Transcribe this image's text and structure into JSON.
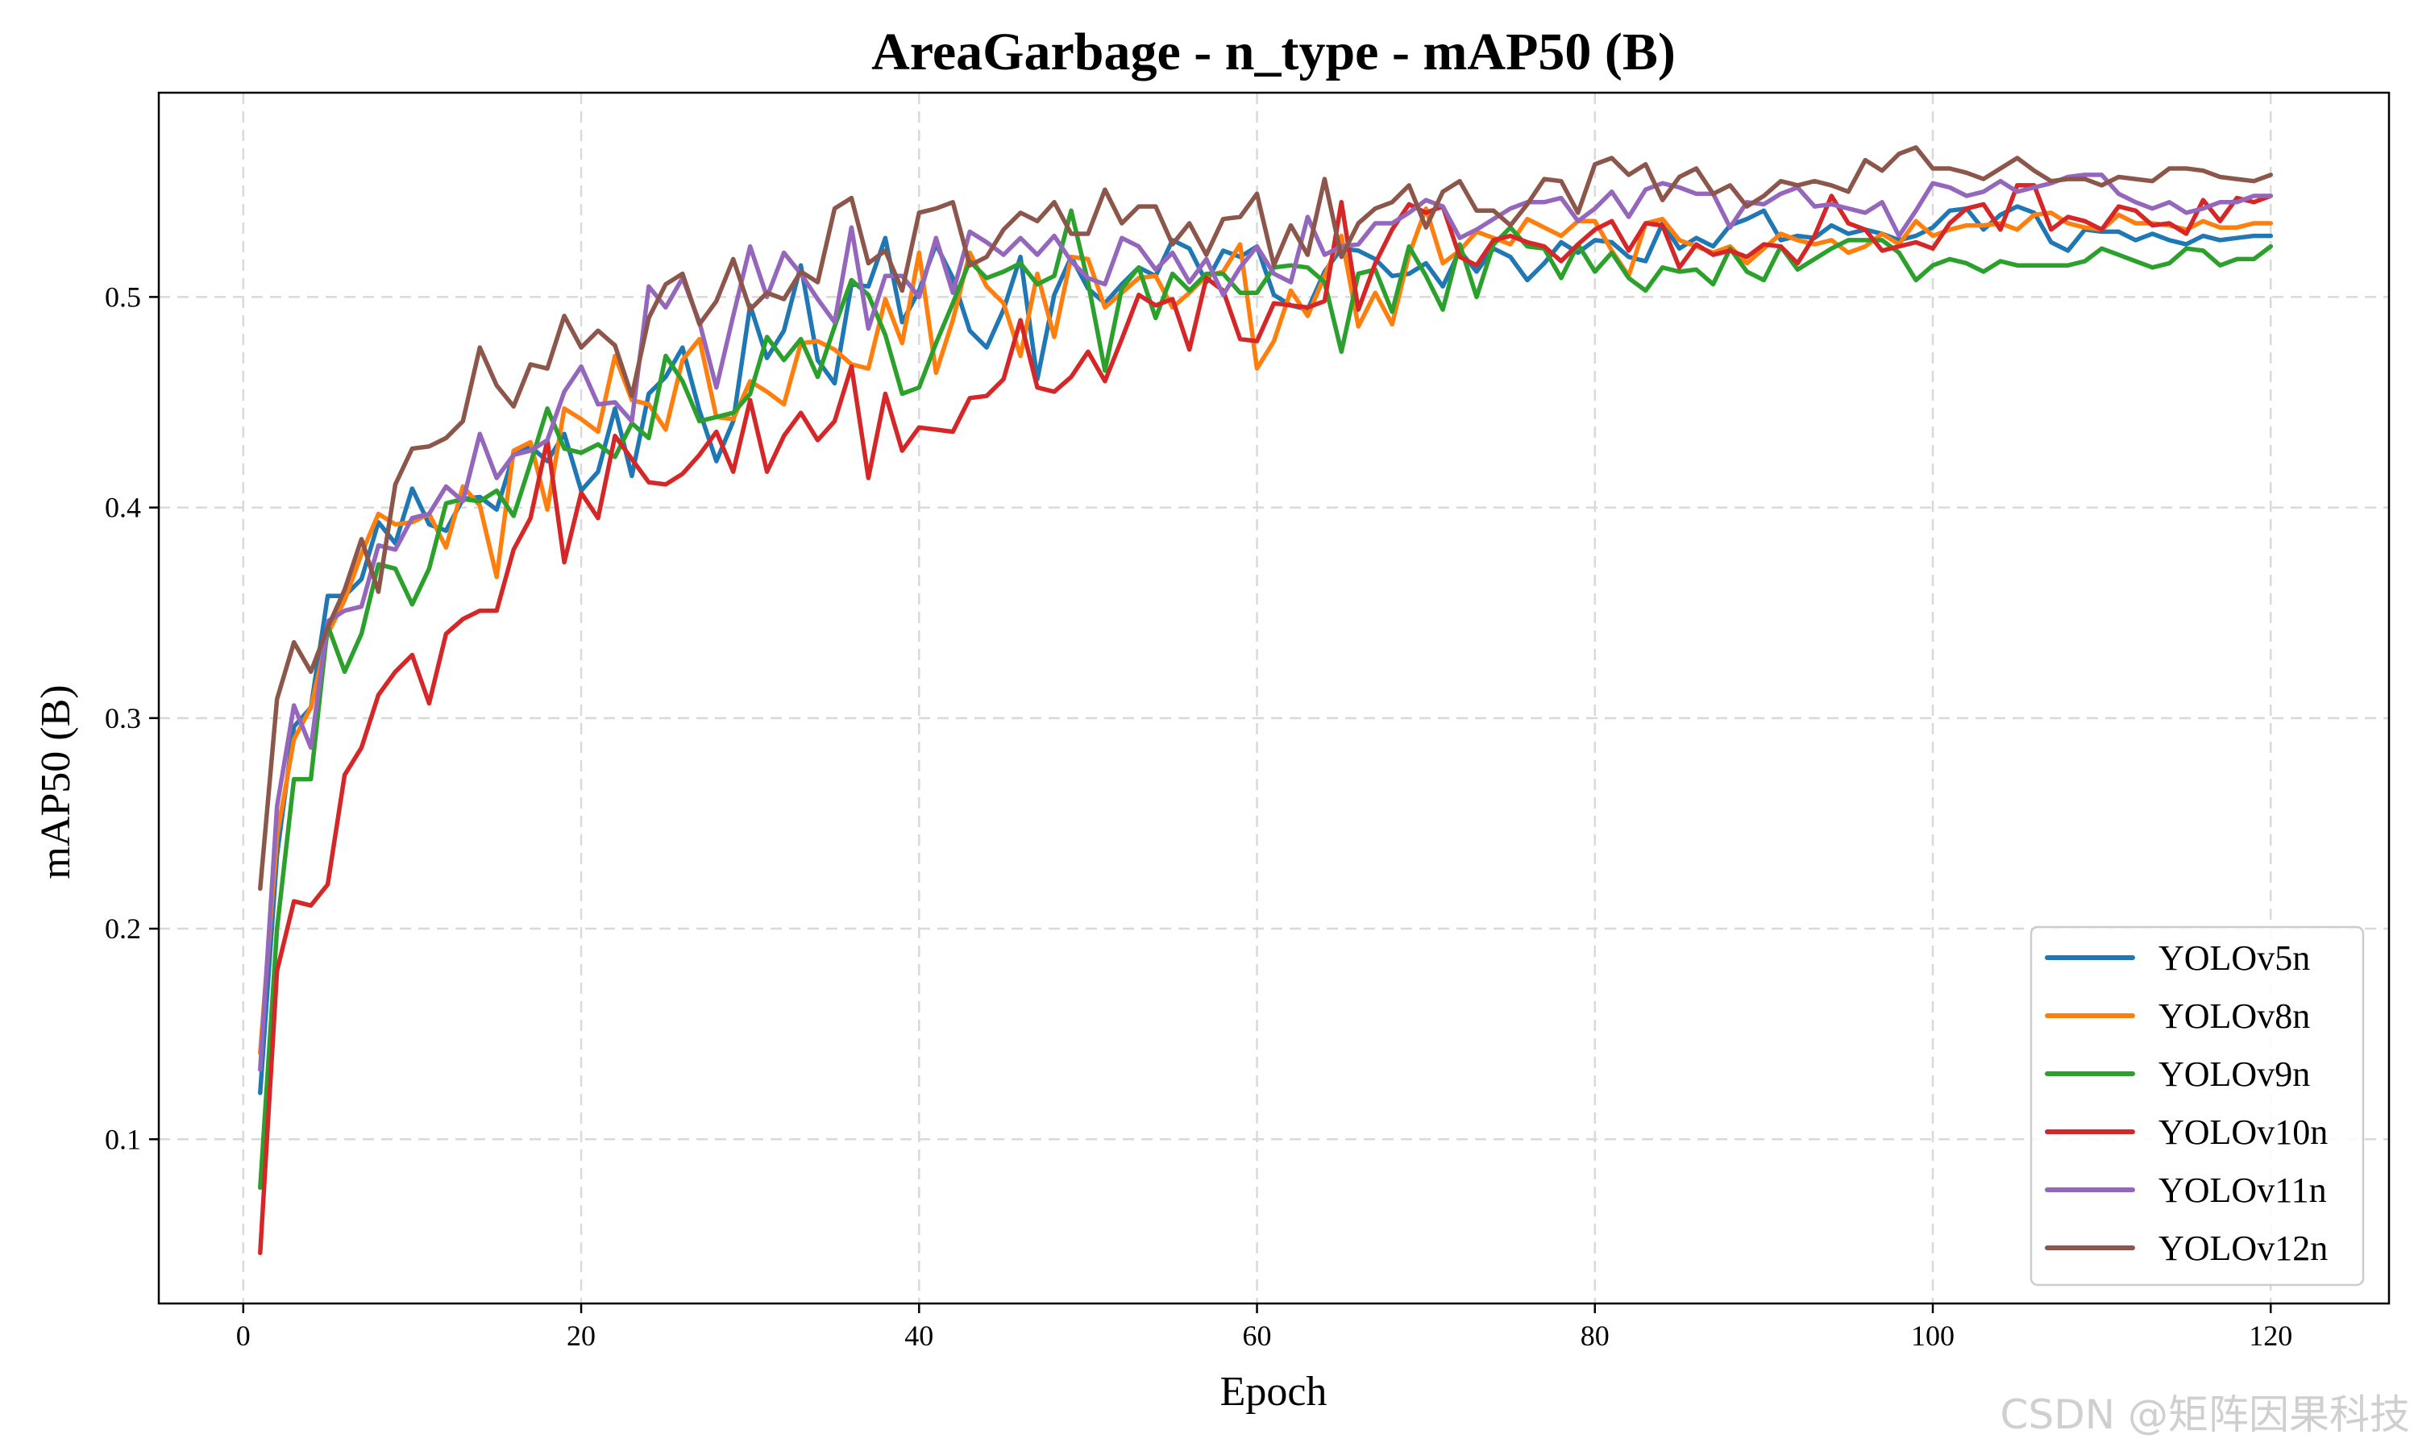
{
  "chart_data": {
    "type": "line",
    "title": "AreaGarbage - n_type - mAP50 (B)",
    "xlabel": "Epoch",
    "ylabel": "mAP50 (B)",
    "xlim": [
      -5,
      127
    ],
    "ylim": [
      0.022,
      0.597
    ],
    "xticks": [
      0,
      20,
      40,
      60,
      80,
      100,
      120
    ],
    "yticks": [
      0.1,
      0.2,
      0.3,
      0.4,
      0.5
    ],
    "grid": true,
    "legend_position": "lower-right",
    "x": [
      1,
      2,
      3,
      4,
      5,
      6,
      7,
      8,
      9,
      10,
      11,
      12,
      13,
      14,
      15,
      16,
      17,
      18,
      19,
      20,
      21,
      22,
      23,
      24,
      25,
      26,
      27,
      28,
      29,
      30,
      31,
      32,
      33,
      34,
      35,
      36,
      37,
      38,
      39,
      40,
      41,
      42,
      43,
      44,
      45,
      46,
      47,
      48,
      49,
      50,
      51,
      52,
      53,
      54,
      55,
      56,
      57,
      58,
      59,
      60,
      61,
      62,
      63,
      64,
      65,
      66,
      67,
      68,
      69,
      70,
      71,
      72,
      73,
      74,
      75,
      76,
      77,
      78,
      79,
      80,
      81,
      82,
      83,
      84,
      85,
      86,
      87,
      88,
      89,
      90,
      91,
      92,
      93,
      94,
      95,
      96,
      97,
      98,
      99,
      100,
      101,
      102,
      103,
      104,
      105,
      106,
      107,
      108,
      109,
      110,
      111,
      112,
      113,
      114,
      115,
      116,
      117,
      118,
      119,
      120
    ],
    "series": [
      {
        "name": "YOLOv5n",
        "color": "#1f77b4",
        "values": [
          0.122,
          0.235,
          0.296,
          0.305,
          0.358,
          0.358,
          0.366,
          0.393,
          0.383,
          0.409,
          0.392,
          0.389,
          0.404,
          0.405,
          0.399,
          0.425,
          0.429,
          0.422,
          0.435,
          0.408,
          0.417,
          0.447,
          0.415,
          0.454,
          0.462,
          0.476,
          0.446,
          0.422,
          0.441,
          0.496,
          0.471,
          0.484,
          0.515,
          0.47,
          0.459,
          0.506,
          0.505,
          0.528,
          0.488,
          0.503,
          0.525,
          0.509,
          0.484,
          0.476,
          0.494,
          0.519,
          0.461,
          0.501,
          0.519,
          0.504,
          0.497,
          0.506,
          0.514,
          0.51,
          0.527,
          0.523,
          0.507,
          0.522,
          0.519,
          0.524,
          0.501,
          0.496,
          0.494,
          0.512,
          0.523,
          0.522,
          0.518,
          0.51,
          0.511,
          0.516,
          0.505,
          0.522,
          0.512,
          0.523,
          0.519,
          0.508,
          0.516,
          0.526,
          0.521,
          0.527,
          0.526,
          0.519,
          0.517,
          0.535,
          0.523,
          0.528,
          0.524,
          0.534,
          0.537,
          0.541,
          0.527,
          0.529,
          0.528,
          0.534,
          0.53,
          0.532,
          0.53,
          0.527,
          0.529,
          0.533,
          0.541,
          0.542,
          0.532,
          0.539,
          0.543,
          0.54,
          0.526,
          0.522,
          0.532,
          0.531,
          0.531,
          0.527,
          0.53,
          0.527,
          0.525,
          0.529,
          0.527,
          0.528,
          0.529,
          0.529
        ]
      },
      {
        "name": "YOLOv8n",
        "color": "#ff7f0e",
        "values": [
          0.141,
          0.244,
          0.29,
          0.305,
          0.34,
          0.356,
          0.378,
          0.397,
          0.392,
          0.393,
          0.397,
          0.381,
          0.41,
          0.401,
          0.367,
          0.427,
          0.431,
          0.399,
          0.447,
          0.442,
          0.436,
          0.472,
          0.451,
          0.449,
          0.437,
          0.47,
          0.48,
          0.443,
          0.442,
          0.46,
          0.455,
          0.449,
          0.478,
          0.479,
          0.475,
          0.468,
          0.466,
          0.499,
          0.478,
          0.521,
          0.464,
          0.489,
          0.521,
          0.505,
          0.497,
          0.472,
          0.511,
          0.481,
          0.519,
          0.518,
          0.495,
          0.502,
          0.509,
          0.51,
          0.495,
          0.502,
          0.51,
          0.512,
          0.525,
          0.466,
          0.479,
          0.503,
          0.491,
          0.51,
          0.529,
          0.486,
          0.502,
          0.487,
          0.52,
          0.542,
          0.516,
          0.522,
          0.531,
          0.528,
          0.525,
          0.537,
          0.533,
          0.529,
          0.536,
          0.536,
          0.522,
          0.51,
          0.535,
          0.537,
          0.527,
          0.524,
          0.521,
          0.524,
          0.516,
          0.523,
          0.53,
          0.527,
          0.525,
          0.527,
          0.521,
          0.524,
          0.53,
          0.525,
          0.536,
          0.529,
          0.532,
          0.534,
          0.534,
          0.535,
          0.532,
          0.539,
          0.54,
          0.535,
          0.533,
          0.532,
          0.539,
          0.535,
          0.535,
          0.534,
          0.532,
          0.536,
          0.533,
          0.533,
          0.535,
          0.535
        ]
      },
      {
        "name": "YOLOv9n",
        "color": "#2ca02c",
        "values": [
          0.077,
          0.2,
          0.271,
          0.271,
          0.344,
          0.322,
          0.34,
          0.373,
          0.371,
          0.354,
          0.371,
          0.402,
          0.404,
          0.403,
          0.408,
          0.396,
          0.421,
          0.447,
          0.428,
          0.426,
          0.43,
          0.424,
          0.44,
          0.433,
          0.472,
          0.46,
          0.441,
          0.443,
          0.445,
          0.454,
          0.481,
          0.47,
          0.48,
          0.462,
          0.486,
          0.508,
          0.501,
          0.482,
          0.454,
          0.457,
          0.478,
          0.497,
          0.517,
          0.509,
          0.512,
          0.516,
          0.506,
          0.51,
          0.541,
          0.507,
          0.465,
          0.504,
          0.514,
          0.49,
          0.511,
          0.503,
          0.511,
          0.511,
          0.502,
          0.502,
          0.514,
          0.515,
          0.514,
          0.507,
          0.474,
          0.511,
          0.513,
          0.493,
          0.524,
          0.51,
          0.494,
          0.525,
          0.5,
          0.525,
          0.533,
          0.524,
          0.523,
          0.509,
          0.525,
          0.512,
          0.521,
          0.509,
          0.503,
          0.514,
          0.512,
          0.513,
          0.506,
          0.523,
          0.512,
          0.508,
          0.524,
          0.513,
          0.518,
          0.523,
          0.527,
          0.527,
          0.527,
          0.521,
          0.508,
          0.515,
          0.518,
          0.516,
          0.512,
          0.517,
          0.515,
          0.515,
          0.515,
          0.515,
          0.517,
          0.523,
          0.52,
          0.517,
          0.514,
          0.516,
          0.523,
          0.522,
          0.515,
          0.518,
          0.518,
          0.524
        ]
      },
      {
        "name": "YOLOv10n",
        "color": "#d62728",
        "values": [
          0.046,
          0.18,
          0.213,
          0.211,
          0.221,
          0.273,
          0.286,
          0.311,
          0.322,
          0.33,
          0.307,
          0.34,
          0.347,
          0.351,
          0.351,
          0.38,
          0.395,
          0.432,
          0.374,
          0.407,
          0.395,
          0.434,
          0.423,
          0.412,
          0.411,
          0.416,
          0.425,
          0.436,
          0.417,
          0.451,
          0.417,
          0.434,
          0.445,
          0.432,
          0.441,
          0.467,
          0.414,
          0.454,
          0.427,
          0.438,
          0.437,
          0.436,
          0.452,
          0.453,
          0.461,
          0.489,
          0.457,
          0.455,
          0.462,
          0.474,
          0.46,
          0.48,
          0.501,
          0.496,
          0.499,
          0.475,
          0.509,
          0.503,
          0.48,
          0.479,
          0.497,
          0.496,
          0.495,
          0.498,
          0.545,
          0.494,
          0.516,
          0.532,
          0.544,
          0.54,
          0.543,
          0.519,
          0.515,
          0.527,
          0.529,
          0.526,
          0.524,
          0.517,
          0.525,
          0.532,
          0.536,
          0.522,
          0.535,
          0.534,
          0.514,
          0.525,
          0.52,
          0.522,
          0.519,
          0.525,
          0.524,
          0.516,
          0.529,
          0.548,
          0.535,
          0.532,
          0.522,
          0.524,
          0.526,
          0.523,
          0.535,
          0.542,
          0.544,
          0.532,
          0.553,
          0.553,
          0.532,
          0.538,
          0.536,
          0.532,
          0.543,
          0.541,
          0.534,
          0.535,
          0.53,
          0.546,
          0.536,
          0.547,
          0.545,
          0.548
        ]
      },
      {
        "name": "YOLOv11n",
        "color": "#9467bd",
        "values": [
          0.133,
          0.258,
          0.306,
          0.286,
          0.346,
          0.351,
          0.353,
          0.382,
          0.38,
          0.395,
          0.397,
          0.41,
          0.403,
          0.435,
          0.414,
          0.425,
          0.427,
          0.432,
          0.455,
          0.467,
          0.449,
          0.45,
          0.441,
          0.505,
          0.495,
          0.509,
          0.488,
          0.457,
          0.491,
          0.524,
          0.5,
          0.521,
          0.511,
          0.499,
          0.488,
          0.533,
          0.485,
          0.51,
          0.51,
          0.5,
          0.528,
          0.502,
          0.531,
          0.526,
          0.52,
          0.528,
          0.52,
          0.529,
          0.517,
          0.509,
          0.506,
          0.528,
          0.524,
          0.513,
          0.521,
          0.507,
          0.518,
          0.501,
          0.514,
          0.524,
          0.511,
          0.507,
          0.538,
          0.52,
          0.524,
          0.525,
          0.535,
          0.535,
          0.54,
          0.546,
          0.543,
          0.528,
          0.532,
          0.537,
          0.542,
          0.545,
          0.545,
          0.547,
          0.536,
          0.542,
          0.55,
          0.538,
          0.551,
          0.554,
          0.552,
          0.549,
          0.549,
          0.533,
          0.545,
          0.544,
          0.549,
          0.552,
          0.543,
          0.544,
          0.542,
          0.54,
          0.545,
          0.529,
          0.541,
          0.554,
          0.552,
          0.548,
          0.55,
          0.555,
          0.55,
          0.552,
          0.554,
          0.557,
          0.558,
          0.558,
          0.549,
          0.545,
          0.542,
          0.545,
          0.54,
          0.542,
          0.545,
          0.545,
          0.548,
          0.548
        ]
      },
      {
        "name": "YOLOv12n",
        "color": "#8c564b",
        "values": [
          0.219,
          0.309,
          0.336,
          0.322,
          0.343,
          0.361,
          0.385,
          0.36,
          0.411,
          0.428,
          0.429,
          0.433,
          0.441,
          0.476,
          0.458,
          0.448,
          0.468,
          0.466,
          0.491,
          0.476,
          0.484,
          0.477,
          0.453,
          0.49,
          0.506,
          0.511,
          0.487,
          0.498,
          0.518,
          0.494,
          0.502,
          0.499,
          0.512,
          0.507,
          0.542,
          0.547,
          0.516,
          0.522,
          0.503,
          0.54,
          0.542,
          0.545,
          0.515,
          0.519,
          0.532,
          0.54,
          0.536,
          0.545,
          0.53,
          0.53,
          0.551,
          0.535,
          0.543,
          0.543,
          0.525,
          0.535,
          0.52,
          0.537,
          0.538,
          0.549,
          0.515,
          0.534,
          0.52,
          0.556,
          0.519,
          0.535,
          0.542,
          0.545,
          0.553,
          0.533,
          0.55,
          0.555,
          0.541,
          0.541,
          0.534,
          0.544,
          0.556,
          0.555,
          0.54,
          0.563,
          0.566,
          0.558,
          0.563,
          0.546,
          0.557,
          0.561,
          0.549,
          0.553,
          0.543,
          0.548,
          0.555,
          0.553,
          0.555,
          0.553,
          0.55,
          0.565,
          0.56,
          0.568,
          0.571,
          0.561,
          0.561,
          0.559,
          0.556,
          0.561,
          0.566,
          0.56,
          0.555,
          0.556,
          0.556,
          0.553,
          0.557,
          0.556,
          0.555,
          0.561,
          0.561,
          0.56,
          0.557,
          0.556,
          0.555,
          0.558
        ]
      }
    ]
  },
  "watermark": "CSDN @矩阵因果科技"
}
